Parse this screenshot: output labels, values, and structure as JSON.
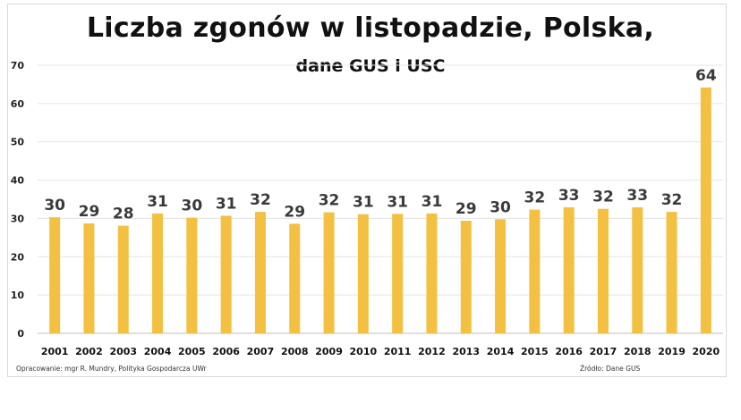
{
  "chart_data": {
    "type": "bar",
    "title": "Liczba zgonów w listopadzie, Polska,",
    "subtitle": "dane GUS i USC",
    "categories": [
      "2001",
      "2002",
      "2003",
      "2004",
      "2005",
      "2006",
      "2007",
      "2008",
      "2009",
      "2010",
      "2011",
      "2012",
      "2013",
      "2014",
      "2015",
      "2016",
      "2017",
      "2018",
      "2019",
      "2020"
    ],
    "values": [
      30.3,
      28.7,
      28.1,
      31.3,
      30.2,
      30.7,
      31.7,
      28.6,
      31.6,
      31.1,
      31.2,
      31.3,
      29.4,
      29.8,
      32.3,
      32.9,
      32.5,
      32.9,
      31.7,
      64.2
    ],
    "data_labels": [
      "30",
      "29",
      "28",
      "31",
      "30",
      "31",
      "32",
      "29",
      "32",
      "31",
      "31",
      "31",
      "29",
      "30",
      "32",
      "33",
      "32",
      "33",
      "32",
      "64"
    ],
    "yticks": [
      "0",
      "10",
      "20",
      "30",
      "40",
      "50",
      "60",
      "70"
    ],
    "ylim": [
      0,
      70
    ],
    "grid": true,
    "bar_color": "#f4c042",
    "xlabel": "",
    "ylabel": ""
  },
  "footer": {
    "left": "Opracowanie: mgr R. Mundry, Polityka Gospodarcza UWr",
    "right": "Źródło: Dane GUS"
  }
}
